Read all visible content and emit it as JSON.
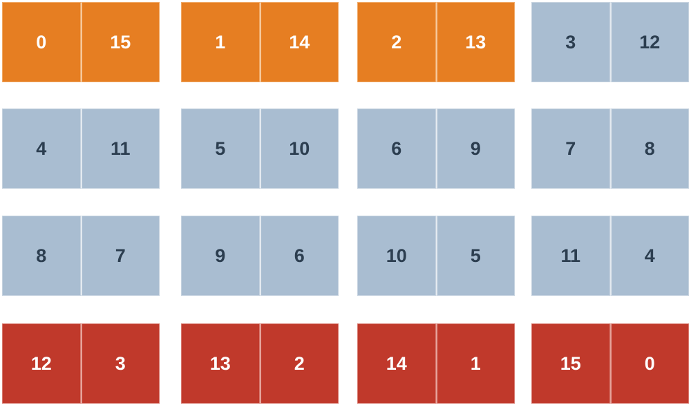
{
  "colors": {
    "orange": "#e67e22",
    "gray": "#a9bdd1",
    "red": "#c0392b",
    "dark_text": "#2c3e50",
    "light_text": "#ffffff"
  },
  "pairs": [
    {
      "left": "0",
      "right": "15",
      "color": "orange"
    },
    {
      "left": "1",
      "right": "14",
      "color": "orange"
    },
    {
      "left": "2",
      "right": "13",
      "color": "orange"
    },
    {
      "left": "3",
      "right": "12",
      "color": "gray"
    },
    {
      "left": "4",
      "right": "11",
      "color": "gray"
    },
    {
      "left": "5",
      "right": "10",
      "color": "gray"
    },
    {
      "left": "6",
      "right": "9",
      "color": "gray"
    },
    {
      "left": "7",
      "right": "8",
      "color": "gray"
    },
    {
      "left": "8",
      "right": "7",
      "color": "gray"
    },
    {
      "left": "9",
      "right": "6",
      "color": "gray"
    },
    {
      "left": "10",
      "right": "5",
      "color": "gray"
    },
    {
      "left": "11",
      "right": "4",
      "color": "gray"
    },
    {
      "left": "12",
      "right": "3",
      "color": "red"
    },
    {
      "left": "13",
      "right": "2",
      "color": "red"
    },
    {
      "left": "14",
      "right": "1",
      "color": "red"
    },
    {
      "left": "15",
      "right": "0",
      "color": "red"
    }
  ]
}
